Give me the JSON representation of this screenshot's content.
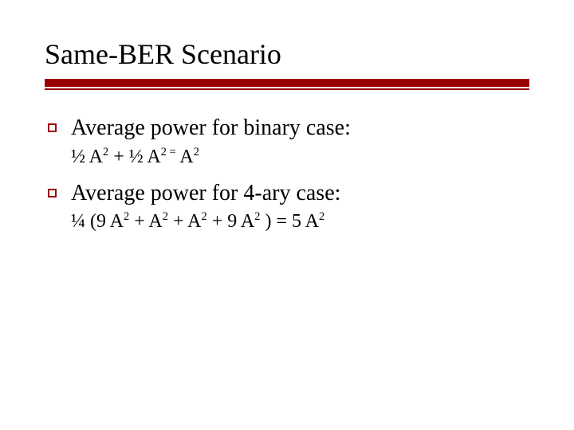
{
  "slide": {
    "title": "Same-BER Scenario",
    "rule_color": "#9a0000",
    "bullets": [
      {
        "main": "Average power for binary case:",
        "sub_html": "½ A<sup>2</sup> + ½ A<sup>2 =</sup> A<sup>2</sup>"
      },
      {
        "main": "Average power for 4-ary case:",
        "sub_html": "¼ (9 A<sup>2</sup> + A<sup>2</sup> + A<sup>2</sup> + 9 A<sup>2</sup> ) = 5 A<sup>2</sup>"
      }
    ]
  },
  "styling": {
    "title_fontsize": 36,
    "main_fontsize": 28,
    "sub_fontsize": 24,
    "title_color": "#000000",
    "text_color": "#000000",
    "background_color": "#ffffff",
    "bullet_border_color": "#9a0000",
    "font_family": "Times New Roman"
  }
}
